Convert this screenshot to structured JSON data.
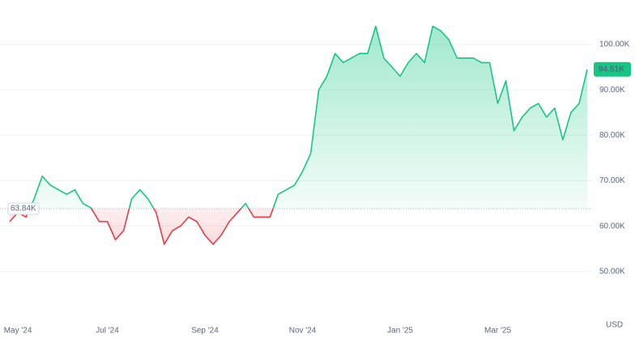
{
  "chart_data": {
    "type": "line",
    "categories": [
      null,
      "May '24",
      null,
      null,
      null,
      null,
      null,
      null,
      null,
      null,
      null,
      null,
      "Jul '24",
      null,
      null,
      null,
      null,
      null,
      null,
      null,
      null,
      null,
      null,
      null,
      "Sep '24",
      null,
      null,
      null,
      null,
      null,
      null,
      null,
      null,
      null,
      null,
      null,
      "Nov '24",
      null,
      null,
      null,
      null,
      null,
      null,
      null,
      null,
      null,
      null,
      null,
      "Jan '25",
      null,
      null,
      null,
      null,
      null,
      null,
      null,
      null,
      null,
      null,
      null,
      "Mar '25",
      null,
      null,
      null,
      null,
      null,
      null,
      null,
      null,
      null,
      null,
      null
    ],
    "values": [
      61,
      63,
      62,
      66,
      71,
      69,
      68,
      67,
      68,
      65,
      64,
      61,
      61,
      57,
      59,
      66,
      68,
      66,
      63,
      56,
      59,
      60,
      62,
      61,
      58,
      56,
      58,
      61,
      63,
      65,
      62,
      62,
      62,
      67,
      68,
      69,
      72,
      76,
      90,
      93,
      98,
      96,
      97,
      98,
      98,
      104,
      97,
      95,
      93,
      96,
      98,
      96,
      104,
      103,
      101,
      97,
      97,
      97,
      96,
      96,
      87,
      92,
      81,
      84,
      86,
      87,
      84,
      86,
      79,
      85,
      87,
      94.51
    ],
    "value_labels": [
      null,
      null,
      null,
      null,
      null,
      null,
      null,
      null,
      null,
      null,
      null,
      null,
      null,
      null,
      null,
      null,
      null,
      null,
      null,
      null,
      null,
      null,
      null,
      null,
      null,
      null,
      null,
      null,
      null,
      null,
      null,
      null,
      null,
      null,
      null,
      null,
      null,
      null,
      null,
      null,
      null,
      null,
      null,
      null,
      null,
      null,
      null,
      null,
      null,
      null,
      null,
      null,
      null,
      null,
      null,
      null,
      null,
      null,
      null,
      null,
      null,
      null,
      null,
      null,
      null,
      null,
      null,
      null,
      null,
      null,
      null,
      "94.51K"
    ],
    "color": "#16c784",
    "down_color": "#ea3943",
    "baseline": {
      "value": 63.84,
      "label": "63.84K"
    },
    "ylim": [
      40,
      108
    ],
    "yticks": [
      {
        "value": 50,
        "label": "50.00K"
      },
      {
        "value": 60,
        "label": "60.00K"
      },
      {
        "value": 70,
        "label": "70.00K"
      },
      {
        "value": 80,
        "label": "80.00K"
      },
      {
        "value": 90,
        "label": "90.00K"
      },
      {
        "value": 100,
        "label": "100.00K"
      }
    ],
    "y_unit": "USD",
    "grid": true
  }
}
